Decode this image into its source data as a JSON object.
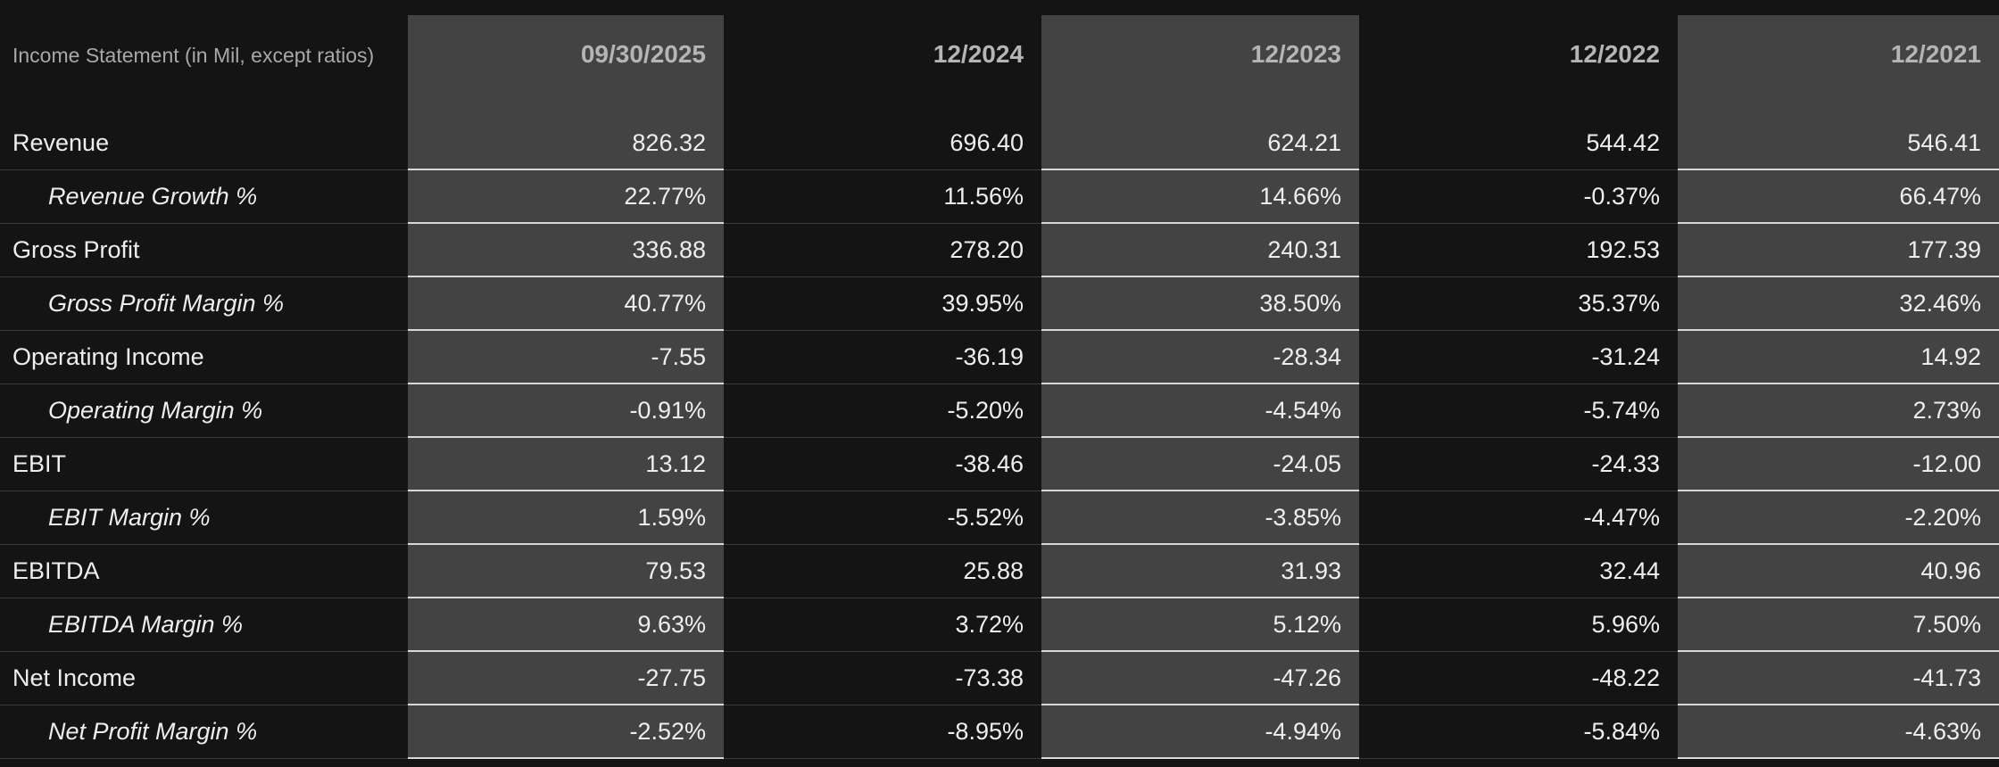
{
  "header": {
    "title": "Income Statement (in Mil, except ratios)",
    "columns": [
      "09/30/2025",
      "12/2024",
      "12/2023",
      "12/2022",
      "12/2021"
    ]
  },
  "table": {
    "rows": [
      {
        "label": "Revenue",
        "cells": [
          "826.32",
          "696.40",
          "624.21",
          "544.42",
          "546.41"
        ]
      },
      {
        "label": "Revenue Growth %",
        "cells": [
          "22.77%",
          "11.56%",
          "14.66%",
          "-0.37%",
          "66.47%"
        ]
      },
      {
        "label": "Gross Profit",
        "cells": [
          "336.88",
          "278.20",
          "240.31",
          "192.53",
          "177.39"
        ]
      },
      {
        "label": "Gross Profit Margin %",
        "cells": [
          "40.77%",
          "39.95%",
          "38.50%",
          "35.37%",
          "32.46%"
        ]
      },
      {
        "label": "Operating Income",
        "cells": [
          "-7.55",
          "-36.19",
          "-28.34",
          "-31.24",
          "14.92"
        ]
      },
      {
        "label": "Operating Margin %",
        "cells": [
          "-0.91%",
          "-5.20%",
          "-4.54%",
          "-5.74%",
          "2.73%"
        ]
      },
      {
        "label": "EBIT",
        "cells": [
          "13.12",
          "-38.46",
          "-24.05",
          "-24.33",
          "-12.00"
        ]
      },
      {
        "label": "EBIT Margin %",
        "cells": [
          "1.59%",
          "-5.52%",
          "-3.85%",
          "-4.47%",
          "-2.20%"
        ]
      },
      {
        "label": "EBITDA",
        "cells": [
          "79.53",
          "25.88",
          "31.93",
          "32.44",
          "40.96"
        ]
      },
      {
        "label": "EBITDA Margin %",
        "cells": [
          "9.63%",
          "3.72%",
          "5.12%",
          "5.96%",
          "7.50%"
        ]
      },
      {
        "label": "Net Income",
        "cells": [
          "-27.75",
          "-73.38",
          "-47.26",
          "-48.22",
          "-41.73"
        ]
      },
      {
        "label": "Net Profit Margin %",
        "cells": [
          "-2.52%",
          "-8.95%",
          "-4.94%",
          "-5.84%",
          "-4.63%"
        ]
      }
    ]
  }
}
